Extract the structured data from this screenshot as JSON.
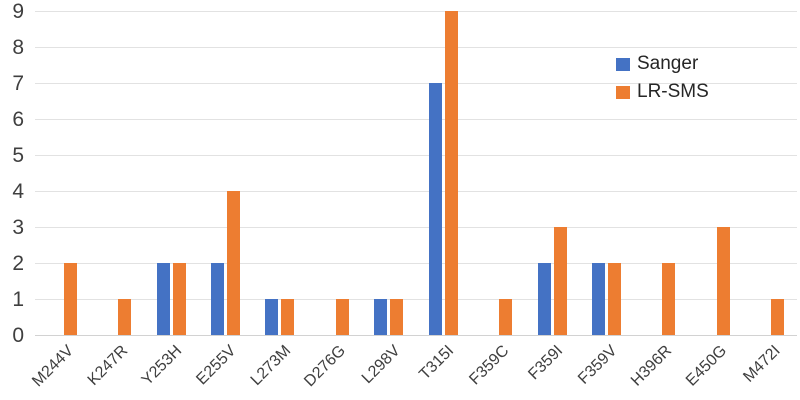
{
  "chart_data": {
    "type": "bar",
    "title": "",
    "xlabel": "",
    "ylabel": "",
    "categories": [
      "M244V",
      "K247R",
      "Y253H",
      "E255V",
      "L273M",
      "D276G",
      "L298V",
      "T315I",
      "F359C",
      "F359I",
      "F359V",
      "H396R",
      "E450G",
      "M472I"
    ],
    "series": [
      {
        "name": "Sanger",
        "color": "#4472c4",
        "values": [
          0,
          0,
          2,
          2,
          1,
          0,
          1,
          7,
          0,
          2,
          2,
          0,
          0,
          0
        ]
      },
      {
        "name": "LR-SMS",
        "color": "#ed7d31",
        "values": [
          2,
          1,
          2,
          4,
          1,
          1,
          1,
          9,
          1,
          3,
          2,
          2,
          3,
          1
        ]
      }
    ],
    "y_ticks": [
      0,
      1,
      2,
      3,
      4,
      5,
      6,
      7,
      8,
      9
    ],
    "ylim": [
      0,
      9
    ],
    "grid": "horizontal",
    "gridline_color": "#e2e2e2",
    "axis_text_color": "#3f3f3f",
    "legend_position": "top-right",
    "legend": [
      "Sanger",
      "LR-SMS"
    ]
  }
}
